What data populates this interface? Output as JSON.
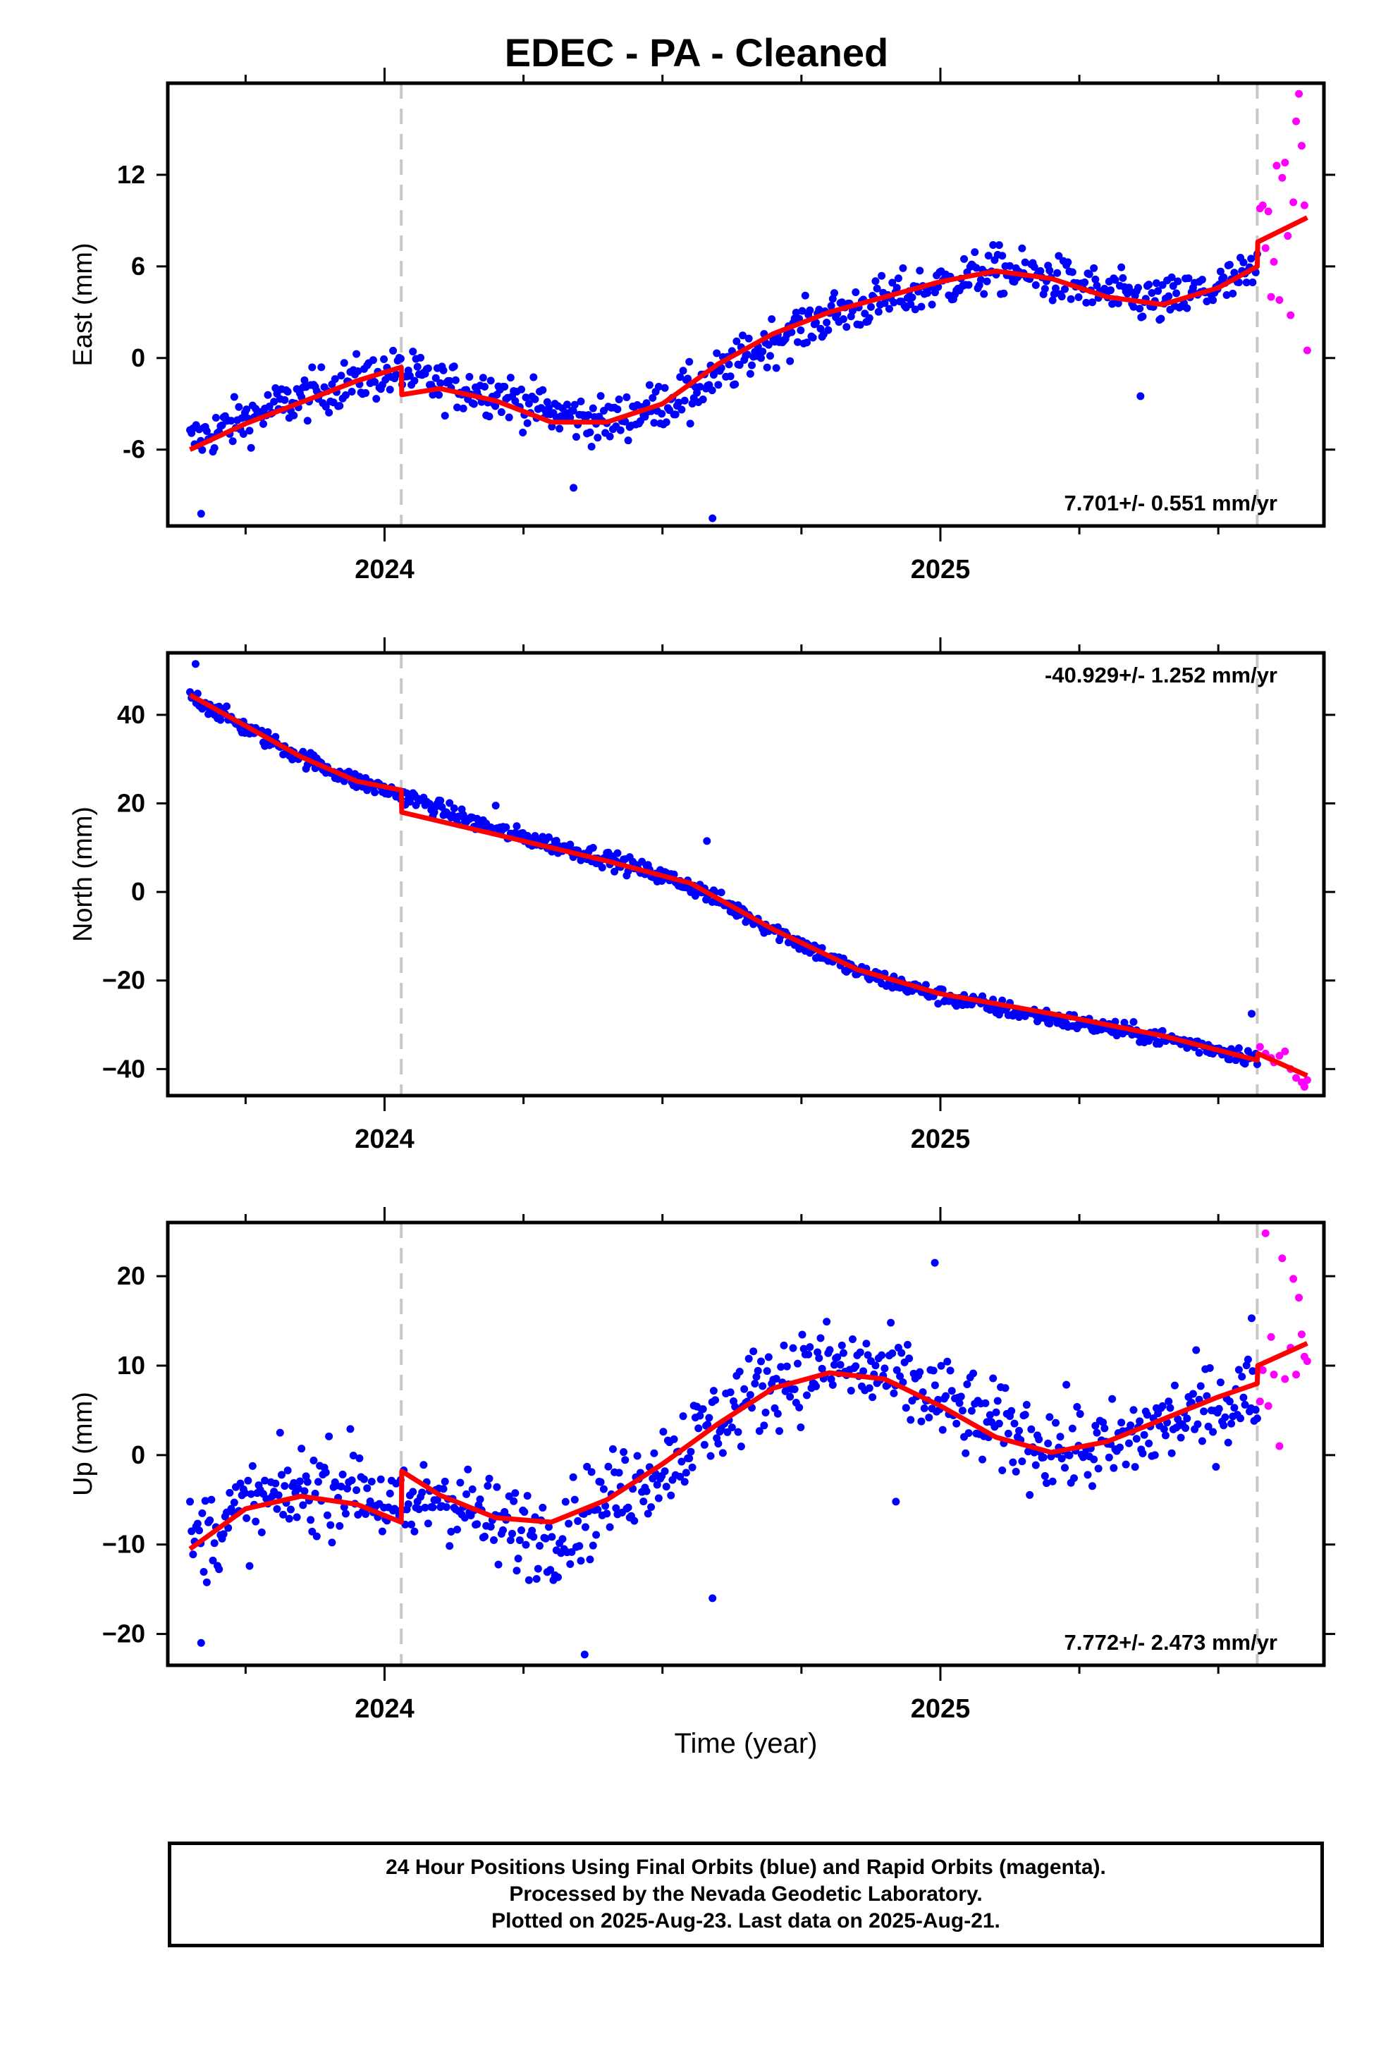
{
  "title": "EDEC  - PA - Cleaned",
  "xlabel": "Time (year)",
  "footer": {
    "line1": "24 Hour Positions Using Final Orbits (blue) and Rapid Orbits (magenta).",
    "line2": "Processed by the Nevada Geodetic Laboratory.",
    "line3": "Plotted on 2025-Aug-23. Last data on 2025-Aug-21."
  },
  "colors": {
    "final_orbits": "#0000ff",
    "rapid_orbits": "#ff00ff",
    "model_fit": "#ff0000",
    "equipment_change_line": "#c8c8c8"
  },
  "chart_data": [
    {
      "type": "scatter",
      "component": "east",
      "ylabel": "East (mm)",
      "xlim": [
        2023.61,
        2025.69
      ],
      "ylim": [
        -11,
        18
      ],
      "yticks": [
        -6,
        0,
        6,
        12
      ],
      "ytick_labels": [
        "-6",
        "0",
        "6",
        "12"
      ],
      "xticks": [
        2024,
        2025
      ],
      "xtick_labels": [
        "2024",
        "2025"
      ],
      "vlines": [
        2024.03,
        2025.57
      ],
      "rate_label": "7.701+/- 0.551 mm/yr",
      "rate_position": "bottom-right",
      "model_fit": {
        "x": [
          2023.65,
          2023.75,
          2023.85,
          2023.95,
          2024.03,
          2024.031,
          2024.1,
          2024.2,
          2024.3,
          2024.4,
          2024.5,
          2024.6,
          2024.7,
          2024.8,
          2024.9,
          2025.0,
          2025.1,
          2025.2,
          2025.3,
          2025.4,
          2025.5,
          2025.57,
          2025.571,
          2025.66
        ],
        "y": [
          -6.0,
          -4.3,
          -2.9,
          -1.5,
          -0.6,
          -2.4,
          -2.0,
          -2.8,
          -4.2,
          -4.2,
          -3.0,
          -0.4,
          1.6,
          3.0,
          4.0,
          5.0,
          5.7,
          5.2,
          4.0,
          3.5,
          4.6,
          6.0,
          7.6,
          9.2
        ]
      },
      "final_orbits": {
        "trend": {
          "x": [
            2023.65,
            2023.75,
            2023.85,
            2023.95,
            2024.03,
            2024.1,
            2024.2,
            2024.3,
            2024.4,
            2024.5,
            2024.6,
            2024.7,
            2024.8,
            2024.9,
            2025.0,
            2025.1,
            2025.2,
            2025.3,
            2025.4,
            2025.5,
            2025.57
          ],
          "y": [
            -5.5,
            -4.0,
            -2.6,
            -1.4,
            -0.9,
            -1.8,
            -2.2,
            -3.6,
            -4.2,
            -3.0,
            -1.2,
            1.2,
            2.8,
            3.8,
            4.8,
            5.8,
            5.2,
            4.2,
            3.6,
            4.6,
            5.6
          ]
        },
        "x_start": 2023.65,
        "x_end": 2025.57,
        "spread": 1.3,
        "outliers": [
          [
            2023.67,
            -10.2
          ],
          [
            2024.59,
            -10.5
          ],
          [
            2025.36,
            -2.5
          ],
          [
            2024.55,
            -4.3
          ],
          [
            2024.34,
            -8.5
          ]
        ]
      },
      "rapid_orbits": {
        "x": [
          2025.575,
          2025.58,
          2025.585,
          2025.59,
          2025.595,
          2025.6,
          2025.605,
          2025.61,
          2025.615,
          2025.62,
          2025.625,
          2025.63,
          2025.635,
          2025.64,
          2025.645,
          2025.65,
          2025.655,
          2025.66
        ],
        "y": [
          9.8,
          10.0,
          7.2,
          9.6,
          4.0,
          6.3,
          12.6,
          3.8,
          11.8,
          12.8,
          8.0,
          2.8,
          10.2,
          15.5,
          17.3,
          13.9,
          10.0,
          0.5
        ]
      }
    },
    {
      "type": "scatter",
      "component": "north",
      "ylabel": "North (mm)",
      "xlim": [
        2023.61,
        2025.69
      ],
      "ylim": [
        -46,
        54
      ],
      "yticks": [
        -40,
        -20,
        0,
        20,
        40
      ],
      "ytick_labels": [
        "−40",
        "−20",
        "0",
        "20",
        "40"
      ],
      "xticks": [
        2024,
        2025
      ],
      "xtick_labels": [
        "2024",
        "2025"
      ],
      "vlines": [
        2024.03,
        2025.57
      ],
      "rate_label": "-40.929+/- 1.252 mm/yr",
      "rate_position": "top-right",
      "model_fit": {
        "x": [
          2023.65,
          2023.75,
          2023.85,
          2023.95,
          2024.03,
          2024.031,
          2024.2,
          2024.4,
          2024.55,
          2024.7,
          2024.85,
          2025.0,
          2025.2,
          2025.4,
          2025.57,
          2025.571,
          2025.66
        ],
        "y": [
          44.5,
          37.5,
          30.5,
          25.0,
          23.0,
          18.0,
          13.0,
          7.0,
          2.0,
          -8.5,
          -17.5,
          -23.0,
          -27.5,
          -32.5,
          -38.0,
          -36.5,
          -41.5
        ]
      },
      "final_orbits": {
        "trend": {
          "x": [
            2023.65,
            2023.75,
            2023.85,
            2023.95,
            2024.03,
            2024.2,
            2024.4,
            2024.55,
            2024.7,
            2024.85,
            2025.0,
            2025.2,
            2025.4,
            2025.57
          ],
          "y": [
            44.5,
            37.0,
            30.5,
            25.0,
            22.0,
            14.0,
            7.5,
            1.5,
            -8.5,
            -18.0,
            -23.5,
            -28.5,
            -33.0,
            -37.5
          ]
        },
        "x_start": 2023.65,
        "x_end": 2025.57,
        "spread": 1.6,
        "outliers": [
          [
            2023.66,
            51.5
          ],
          [
            2024.58,
            11.5
          ],
          [
            2025.56,
            -27.5
          ],
          [
            2024.2,
            19.5
          ]
        ]
      },
      "rapid_orbits": {
        "x": [
          2025.575,
          2025.585,
          2025.595,
          2025.6,
          2025.61,
          2025.62,
          2025.63,
          2025.64,
          2025.65,
          2025.655,
          2025.66
        ],
        "y": [
          -35.0,
          -36.5,
          -37.5,
          -38.5,
          -37.0,
          -36.0,
          -40.0,
          -42.0,
          -43.0,
          -44.0,
          -42.5
        ]
      }
    },
    {
      "type": "scatter",
      "component": "up",
      "ylabel": "Up (mm)",
      "xlim": [
        2023.61,
        2025.69
      ],
      "ylim": [
        -23.5,
        26
      ],
      "yticks": [
        -20,
        -10,
        0,
        10,
        20
      ],
      "ytick_labels": [
        "−20",
        "−10",
        "0",
        "10",
        "20"
      ],
      "xticks": [
        2024,
        2025
      ],
      "xtick_labels": [
        "2024",
        "2025"
      ],
      "vlines": [
        2024.03,
        2025.57
      ],
      "rate_label": "7.772+/- 2.473 mm/yr",
      "rate_position": "bottom-right",
      "model_fit": {
        "x": [
          2023.65,
          2023.75,
          2023.85,
          2023.95,
          2024.03,
          2024.031,
          2024.1,
          2024.2,
          2024.3,
          2024.4,
          2024.5,
          2024.6,
          2024.7,
          2024.8,
          2024.9,
          2025.0,
          2025.1,
          2025.2,
          2025.3,
          2025.4,
          2025.5,
          2025.57,
          2025.571,
          2025.66
        ],
        "y": [
          -10.5,
          -6.0,
          -4.6,
          -5.5,
          -7.5,
          -1.8,
          -4.5,
          -7.0,
          -7.5,
          -5.0,
          -1.0,
          3.5,
          7.5,
          9.2,
          8.5,
          5.5,
          2.0,
          0.3,
          1.5,
          4.0,
          6.5,
          8.0,
          10.0,
          12.5
        ]
      },
      "final_orbits": {
        "trend": {
          "x": [
            2023.65,
            2023.75,
            2023.85,
            2023.95,
            2024.03,
            2024.1,
            2024.2,
            2024.3,
            2024.4,
            2024.5,
            2024.6,
            2024.7,
            2024.8,
            2024.9,
            2025.0,
            2025.1,
            2025.2,
            2025.3,
            2025.4,
            2025.5,
            2025.57
          ],
          "y": [
            -10.0,
            -6.0,
            -4.0,
            -3.0,
            -7.0,
            -4.0,
            -8.0,
            -9.0,
            -5.0,
            -1.0,
            4.0,
            8.5,
            10.0,
            9.0,
            6.0,
            3.0,
            1.0,
            0.5,
            3.5,
            5.5,
            7.0
          ]
        },
        "x_start": 2023.65,
        "x_end": 2025.57,
        "spread": 4.2,
        "outliers": [
          [
            2023.67,
            -21.0
          ],
          [
            2024.36,
            -22.3
          ],
          [
            2024.59,
            -16.0
          ],
          [
            2024.92,
            -5.2
          ],
          [
            2024.99,
            21.5
          ],
          [
            2025.56,
            15.3
          ]
        ]
      },
      "rapid_orbits": {
        "x": [
          2025.575,
          2025.58,
          2025.585,
          2025.59,
          2025.595,
          2025.6,
          2025.61,
          2025.615,
          2025.62,
          2025.63,
          2025.635,
          2025.64,
          2025.645,
          2025.65,
          2025.655,
          2025.66
        ],
        "y": [
          6.0,
          9.5,
          24.8,
          5.5,
          13.2,
          9.0,
          1.0,
          22.0,
          8.5,
          12.0,
          19.7,
          9.0,
          17.6,
          13.5,
          11.0,
          10.5
        ]
      }
    }
  ]
}
